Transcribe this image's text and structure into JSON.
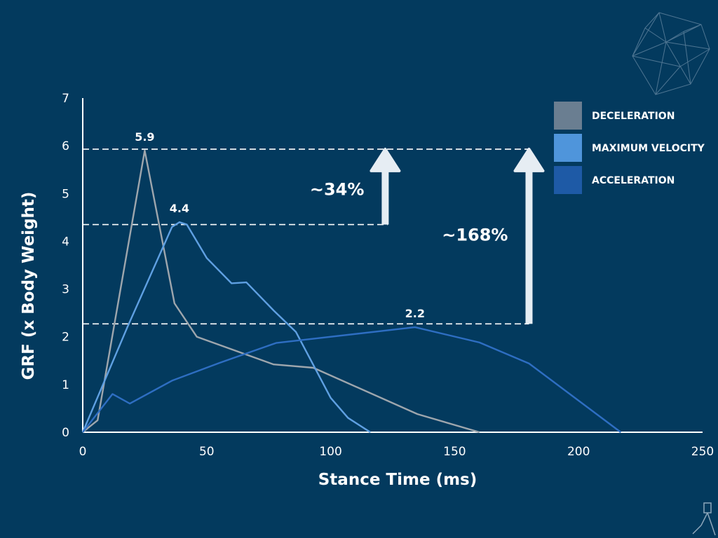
{
  "chart_data": {
    "type": "line",
    "xlabel": "Stance Time (ms)",
    "ylabel": "GRF (x Body Weight)",
    "xlim": [
      0,
      250
    ],
    "ylim": [
      0,
      7
    ],
    "xticks": [
      0,
      50,
      100,
      150,
      200,
      250
    ],
    "yticks": [
      0,
      1,
      2,
      3,
      4,
      5,
      6,
      7
    ],
    "grid": false,
    "legend_position": "top-right",
    "series": [
      {
        "name": "DECELERATION",
        "color": "#9ea6ad",
        "legend_color": "#6a7e91",
        "x": [
          0,
          6,
          25,
          37,
          46,
          77,
          93,
          135,
          160
        ],
        "y": [
          0,
          0.25,
          5.9,
          2.7,
          2.0,
          1.42,
          1.35,
          0.38,
          0
        ]
      },
      {
        "name": "MAXIMUM VELOCITY",
        "color": "#5fa0e2",
        "legend_color": "#4f95db",
        "x": [
          0,
          18,
          36,
          39,
          42,
          50,
          60,
          66,
          77,
          86,
          100,
          107,
          116
        ],
        "y": [
          0,
          2.2,
          4.3,
          4.4,
          4.35,
          3.65,
          3.12,
          3.14,
          2.55,
          2.1,
          0.72,
          0.3,
          0
        ]
      },
      {
        "name": "ACCELERATION",
        "color": "#2e6ec2",
        "legend_color": "#1e5aa6",
        "x": [
          0,
          12,
          19,
          36,
          55,
          78,
          134,
          160,
          180,
          217
        ],
        "y": [
          0,
          0.8,
          0.6,
          1.08,
          1.45,
          1.87,
          2.2,
          1.88,
          1.44,
          0
        ]
      }
    ],
    "peak_labels": [
      {
        "text": "5.9",
        "x": 25,
        "y": 5.9
      },
      {
        "text": "4.4",
        "x": 39,
        "y": 4.4
      },
      {
        "text": "2.2",
        "x": 134,
        "y": 2.2
      }
    ],
    "reference_lines": [
      {
        "y": 5.93,
        "x_end": 180
      },
      {
        "y": 4.35,
        "x_end": 123
      },
      {
        "y": 2.27,
        "x_end": 180
      }
    ],
    "arrows": [
      {
        "x": 122,
        "y_from": 4.35,
        "y_to": 5.93,
        "label": "~34%"
      },
      {
        "x": 180,
        "y_from": 2.27,
        "y_to": 5.93,
        "label": "~168%"
      }
    ]
  }
}
